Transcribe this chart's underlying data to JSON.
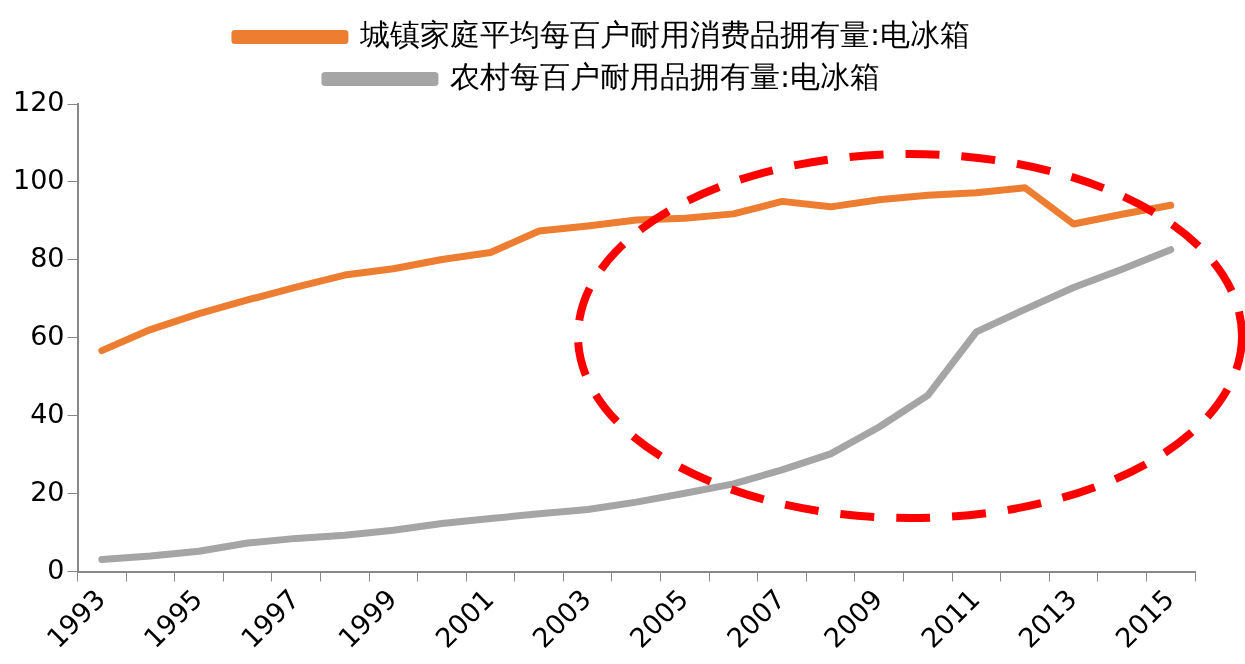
{
  "chart_data": {
    "type": "line",
    "categories": [
      "1993",
      null,
      "1995",
      null,
      "1997",
      null,
      "1999",
      null,
      "2001",
      null,
      "2003",
      null,
      "2005",
      null,
      "2007",
      null,
      "2009",
      null,
      "2011",
      null,
      "2013",
      null,
      "2015"
    ],
    "series": [
      {
        "name": "城镇家庭平均每百户耐用消费品拥有量:电冰箱",
        "color": "#ed7d31",
        "values": [
          56.7,
          62.1,
          66.2,
          69.7,
          73.0,
          76.1,
          77.7,
          80.1,
          81.9,
          87.4,
          88.7,
          90.2,
          90.7,
          91.8,
          95.0,
          93.6,
          95.4,
          96.6,
          97.2,
          98.5,
          89.2,
          91.7,
          94.0
        ]
      },
      {
        "name": "农村每百户耐用品拥有量:电冰箱",
        "color": "#a5a5a5",
        "values": [
          3.1,
          4.0,
          5.2,
          7.3,
          8.5,
          9.3,
          10.6,
          12.3,
          13.6,
          14.8,
          15.9,
          17.8,
          20.1,
          22.5,
          26.1,
          30.2,
          37.1,
          45.2,
          61.5,
          67.3,
          72.9,
          77.6,
          82.6
        ]
      }
    ],
    "ylim": [
      0,
      120
    ],
    "yticks": [
      0,
      20,
      40,
      60,
      80,
      100,
      120
    ],
    "grid": false,
    "legend": "top",
    "marker": "none",
    "line_style": "solid"
  }
}
